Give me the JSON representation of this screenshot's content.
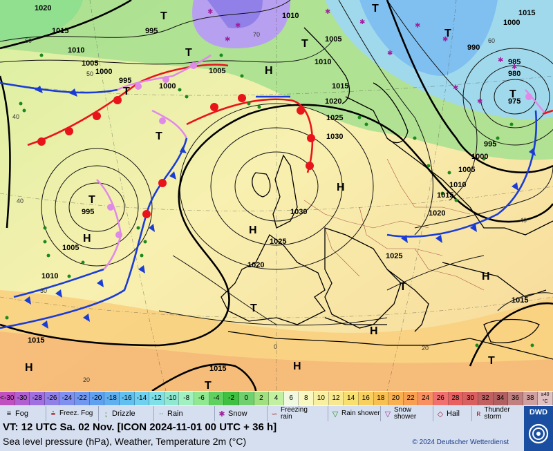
{
  "colors": {
    "front_cold": "#1a3cd6",
    "front_warm": "#e8141a",
    "occlusion": "#e08ae8",
    "isobar": "#000000",
    "land": "#f5e8b0",
    "sea": "#d8e8f8"
  },
  "map": {
    "highs": [
      "H",
      "H",
      "H",
      "H",
      "H",
      "H",
      "H",
      "H"
    ],
    "lows": [
      "T",
      "T",
      "T",
      "T",
      "T",
      "T",
      "T",
      "T",
      "T",
      "T",
      "T",
      "T",
      "T"
    ],
    "isobar_labels": [
      "1020",
      "1015",
      "1010",
      "1005",
      "995",
      "1000",
      "990",
      "985",
      "980",
      "975",
      "1010",
      "1005",
      "1000",
      "995",
      "1010",
      "1005",
      "1000",
      "995",
      "1015",
      "1020",
      "1025",
      "1030",
      "1030",
      "1025",
      "1020",
      "1015",
      "1010",
      "1005",
      "1000",
      "995",
      "1005",
      "1010",
      "1015",
      "1015",
      "1020",
      "1025",
      "1015",
      "1015"
    ],
    "temp_labels": [
      "50",
      "60",
      "70",
      "60",
      "40",
      "40",
      "30",
      "20",
      "20",
      "0",
      "40"
    ]
  },
  "legend": {
    "temp_low": "<-30",
    "temps": [
      "-30",
      "-28",
      "-26",
      "-24",
      "-22",
      "-20",
      "-18",
      "-16",
      "-14",
      "-12",
      "-10",
      "-8",
      "-6",
      "-4",
      "-2",
      "0",
      "2",
      "4",
      "6",
      "8",
      "10",
      "12",
      "14",
      "16",
      "18",
      "20",
      "22",
      "24",
      "26",
      "28",
      "30",
      "32",
      "34",
      "36",
      "38"
    ],
    "temp_high": "≥40 °C",
    "temp_colors": [
      "#c050c0",
      "#b060d0",
      "#a070e0",
      "#9080e8",
      "#8090f0",
      "#7098f0",
      "#60a0f0",
      "#60b0f0",
      "#60c0f0",
      "#70d0f0",
      "#80e0e8",
      "#90e8d0",
      "#a0f0c0",
      "#90e890",
      "#60d060",
      "#40c040",
      "#70d070",
      "#a0e080",
      "#c0f0a0",
      "#f0f8e0",
      "#f8f8c0",
      "#f8f0a0",
      "#f8e890",
      "#f8e070",
      "#f8d060",
      "#f8c050",
      "#f8b050",
      "#f8a050",
      "#f89060",
      "#f07070",
      "#e86060",
      "#d86060",
      "#c06060",
      "#b06060",
      "#c08080",
      "#d0a0a0",
      "#e0c0c0"
    ]
  },
  "weather_legend": [
    {
      "icon": "fog-icon",
      "label": "Fog"
    },
    {
      "icon": "freezing-fog-icon",
      "label": "Freez. Fog"
    },
    {
      "icon": "drizzle-icon",
      "label": "Drizzle"
    },
    {
      "icon": "rain-icon",
      "label": "Rain"
    },
    {
      "icon": "snow-icon",
      "label": "Snow"
    },
    {
      "icon": "freezing-rain-icon",
      "label": "Freezing rain"
    },
    {
      "icon": "rain-shower-icon",
      "label": "Rain shower"
    },
    {
      "icon": "snow-shower-icon",
      "label": "Snow shower"
    },
    {
      "icon": "hail-icon",
      "label": "Hail"
    },
    {
      "icon": "thunderstorm-icon",
      "label": "Thunder storm"
    }
  ],
  "info": {
    "valid_time": "VT: 12 UTC Sa.  02 Nov. [ICON 2024-11-01  00 UTC + 36 h]",
    "subtitle": "Sea level pressure (hPa), Weather, Temperature 2m (°C)",
    "copyright": "© 2024 Deutscher Wetterdienst",
    "logo_text": "DWD"
  }
}
